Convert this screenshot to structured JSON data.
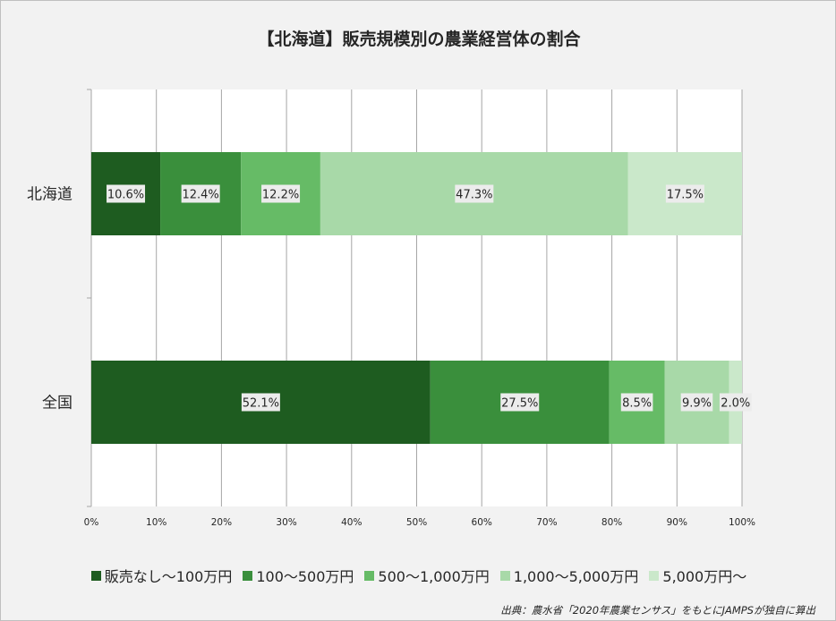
{
  "chart_data": {
    "type": "bar",
    "orientation": "horizontal",
    "stacked": true,
    "title": "【北海道】販売規模別の農業経営体の割合",
    "categories": [
      "北海道",
      "全国"
    ],
    "series": [
      {
        "name": "販売なし～100万円",
        "color": "#1e5c20",
        "values": [
          10.6,
          52.1
        ],
        "labels": [
          "10.6%",
          "52.1%"
        ]
      },
      {
        "name": "100～500万円",
        "color": "#3a8f3c",
        "values": [
          12.4,
          27.5
        ],
        "labels": [
          "12.4%",
          "27.5%"
        ]
      },
      {
        "name": "500～1,000万円",
        "color": "#66bb66",
        "values": [
          12.2,
          8.5
        ],
        "labels": [
          "12.2%",
          "8.5%"
        ]
      },
      {
        "name": "1,000～5,000万円",
        "color": "#a8d9a8",
        "values": [
          47.3,
          9.9
        ],
        "labels": [
          "47.3%",
          "9.9%"
        ]
      },
      {
        "name": "5,000万円～",
        "color": "#cae8ca",
        "values": [
          17.5,
          2.0
        ],
        "labels": [
          "17.5%",
          "2.0%"
        ]
      }
    ],
    "xlim": [
      0,
      100
    ],
    "x_ticks": [
      "0%",
      "10%",
      "20%",
      "30%",
      "40%",
      "50%",
      "60%",
      "70%",
      "80%",
      "90%",
      "100%"
    ],
    "grid": true,
    "legend_position": "bottom"
  },
  "source": "出典：農水省「2020年農業センサス」をもとにJAMPSが独自に算出"
}
